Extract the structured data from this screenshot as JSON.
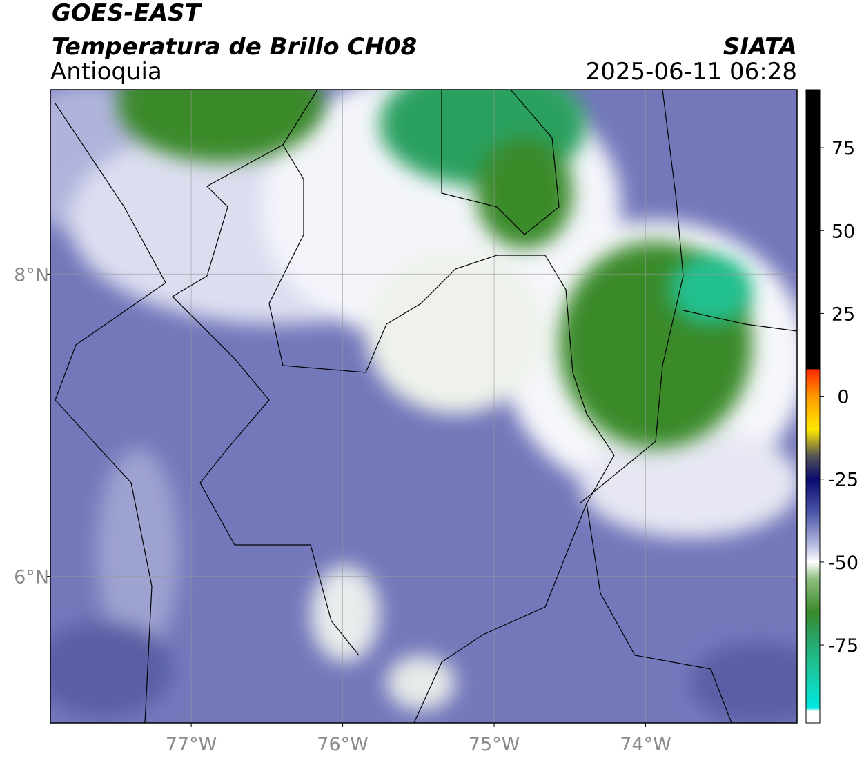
{
  "chart_data": {
    "type": "map",
    "title": "GOES-EAST",
    "subtitle": "Temperatura de Brillo CH08",
    "region": "Antioquia",
    "source": "SIATA",
    "datetime": "2025-06-11 06:28",
    "xlim": [
      -77.93,
      -73.0
    ],
    "ylim": [
      5.03,
      9.22
    ],
    "xticks": [
      {
        "value": -77,
        "label": "77°W"
      },
      {
        "value": -76,
        "label": "76°W"
      },
      {
        "value": -75,
        "label": "75°W"
      },
      {
        "value": -74,
        "label": "74°W"
      }
    ],
    "yticks": [
      {
        "value": 6,
        "label": "6°N"
      },
      {
        "value": 8,
        "label": "8°N"
      }
    ],
    "grid": true,
    "colorbar": {
      "lim": [
        -98.5,
        92.5
      ],
      "ticks": [
        75,
        50,
        25,
        0,
        -25,
        -50,
        -75
      ],
      "stops": [
        92.5,
        8.3,
        8,
        0,
        -10,
        -18,
        -25,
        -35,
        -45,
        -50,
        -55,
        -65,
        -72,
        -80,
        -94,
        -95,
        -98.5
      ],
      "colors": [
        "#000000",
        "#000000",
        "#ff2a00",
        "#ff9a00",
        "#ffe800",
        "#555555",
        "#0a0a70",
        "#4b55a8",
        "#b8bde0",
        "#ffffff",
        "#8fbf80",
        "#3a8a2a",
        "#2aa060",
        "#20c090",
        "#00e8e0",
        "#ffffff",
        "#ffffff"
      ]
    }
  }
}
